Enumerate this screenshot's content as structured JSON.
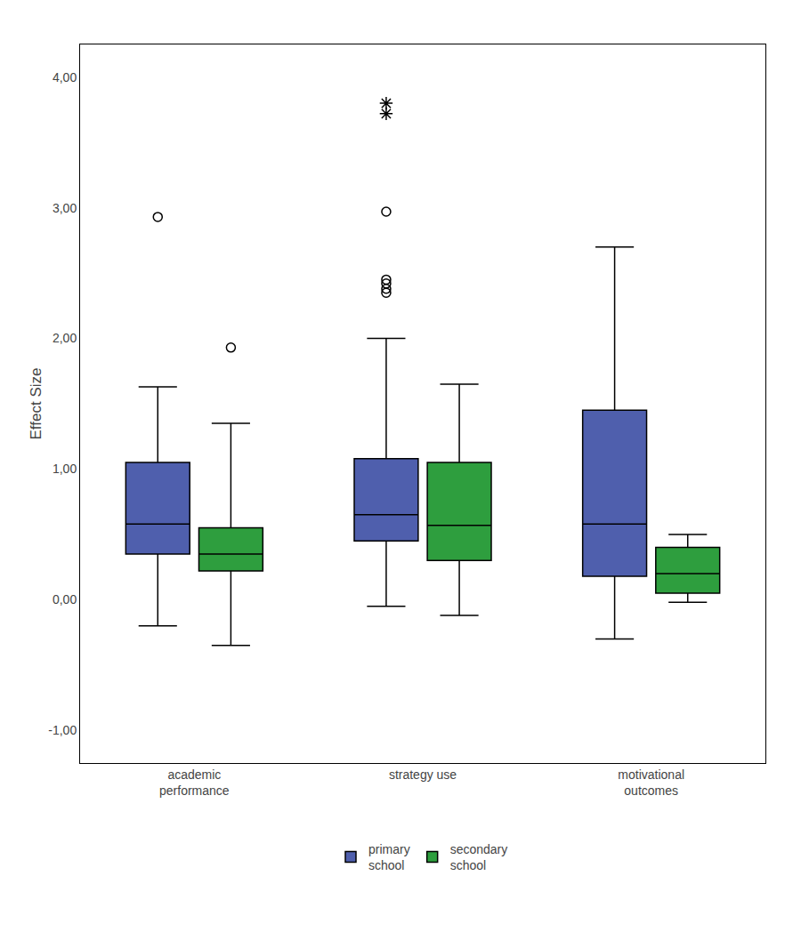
{
  "chart_data": {
    "type": "box",
    "categories": [
      "academic\nperformance",
      "strategy use",
      "motivational\noutcomes"
    ],
    "series": [
      {
        "name": "primary\nschool",
        "color": "#4f5fad",
        "q1": [
          0.35,
          0.45,
          0.18
        ],
        "median": [
          0.58,
          0.65,
          0.58
        ],
        "q3": [
          1.05,
          1.08,
          1.45
        ],
        "whisker_low": [
          -0.2,
          -0.05,
          -0.3
        ],
        "whisker_high": [
          1.63,
          2.0,
          2.7
        ],
        "outliers": [
          [
            2.93
          ],
          [
            2.97,
            2.45,
            2.42,
            2.38,
            2.35
          ],
          []
        ],
        "extreme_outliers": [
          [],
          [
            3.8,
            3.72
          ],
          []
        ]
      },
      {
        "name": "secondary\nschool",
        "color": "#2e9e3e",
        "q1": [
          0.22,
          0.3,
          0.05
        ],
        "median": [
          0.35,
          0.57,
          0.2
        ],
        "q3": [
          0.55,
          1.05,
          0.4
        ],
        "whisker_low": [
          -0.35,
          -0.12,
          -0.02
        ],
        "whisker_high": [
          1.35,
          1.65,
          0.5
        ],
        "outliers": [
          [
            1.93
          ],
          [],
          []
        ],
        "extreme_outliers": [
          [],
          [],
          []
        ]
      }
    ],
    "ylabel": "Effect Size",
    "ylim": [
      -1.25,
      4.25
    ],
    "yticks": [
      {
        "value": -1.0,
        "label": "-1,00"
      },
      {
        "value": 0.0,
        "label": "0,00"
      },
      {
        "value": 1.0,
        "label": "1,00"
      },
      {
        "value": 2.0,
        "label": "2,00"
      },
      {
        "value": 3.0,
        "label": "3,00"
      },
      {
        "value": 4.0,
        "label": "4,00"
      }
    ],
    "grid": false,
    "legend": "bottom"
  }
}
